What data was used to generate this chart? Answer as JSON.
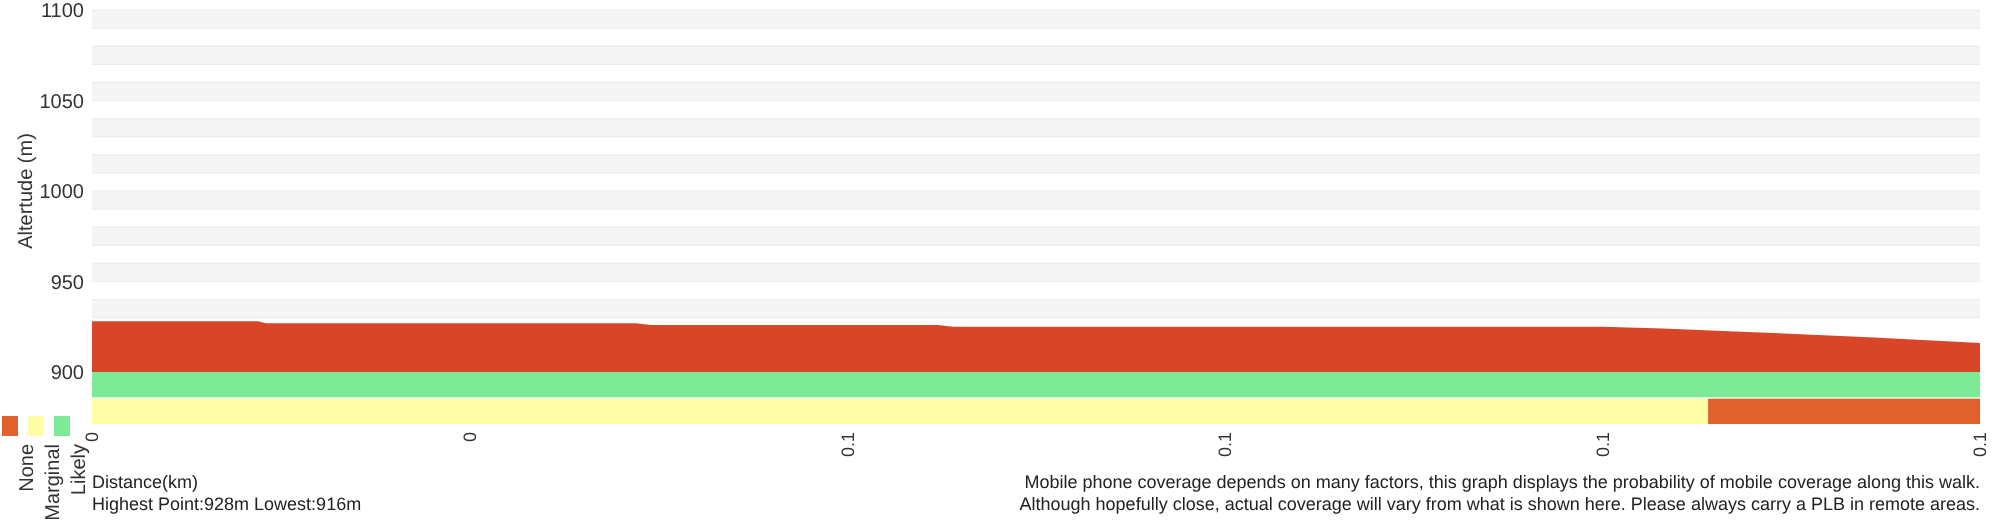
{
  "chart_data": [
    {
      "type": "area",
      "ylabel": "Altertude (m)",
      "x": [
        0,
        0.011,
        0.0115,
        0.036,
        0.037,
        0.056,
        0.057,
        0.1,
        0.104,
        0.11,
        0.118,
        0.125
      ],
      "series": [
        {
          "color": "#d84527",
          "values": [
            928,
            928,
            927,
            927,
            926,
            926,
            925,
            925,
            924,
            922,
            919,
            916
          ]
        }
      ],
      "xlim": [
        0,
        0.125
      ],
      "ylim": [
        900,
        1100
      ],
      "yticks": [
        900,
        {
          "value": 930,
          "label": null
        },
        {
          "value": 940,
          "label": null
        },
        950,
        {
          "value": 960,
          "label": null
        },
        {
          "value": 970,
          "label": null
        },
        {
          "value": 980,
          "label": null
        },
        {
          "value": 990,
          "label": null
        },
        1000,
        {
          "value": 1010,
          "label": null
        },
        {
          "value": 1020,
          "label": null
        },
        {
          "value": 1030,
          "label": null
        },
        {
          "value": 1040,
          "label": null
        },
        1050,
        {
          "value": 1060,
          "label": null
        },
        {
          "value": 1070,
          "label": null
        },
        {
          "value": 1080,
          "label": null
        },
        {
          "value": 1090,
          "label": null
        },
        1100
      ],
      "grid": "y",
      "tick_labels": "y"
    },
    {
      "type": "bar",
      "orientation": "horizontal",
      "stacked": true,
      "categories": [
        null,
        null
      ],
      "xlabel": "Distance(km)",
      "series": [
        {
          "name": "Likely",
          "color": "#7eea98",
          "values": [
            0.125,
            0
          ]
        },
        {
          "name": "Marginal",
          "color": "#fffda6",
          "values": [
            0,
            0.107
          ]
        },
        {
          "name": "None",
          "color": "#e0602e",
          "values": [
            0,
            0.018
          ]
        }
      ],
      "xlim": [
        0,
        0.125
      ],
      "xticks": [
        0,
        {
          "value": 0.025,
          "label": "0"
        },
        {
          "value": 0.05,
          "label": "0.1"
        },
        {
          "value": 0.075,
          "label": "0.1"
        },
        {
          "value": 0.1,
          "label": "0.1"
        },
        {
          "value": 0.125,
          "label": "0.1"
        }
      ],
      "legend": "bottom left",
      "annotations": [
        "Highest Point:928m Lowest:916m",
        "Mobile phone coverage depends on many factors, this graph displays the probability of mobile coverage along this walk.",
        "Although hopefully close, actual coverage will vary from what is shown here. Please always carry a PLB in remote areas."
      ]
    }
  ]
}
